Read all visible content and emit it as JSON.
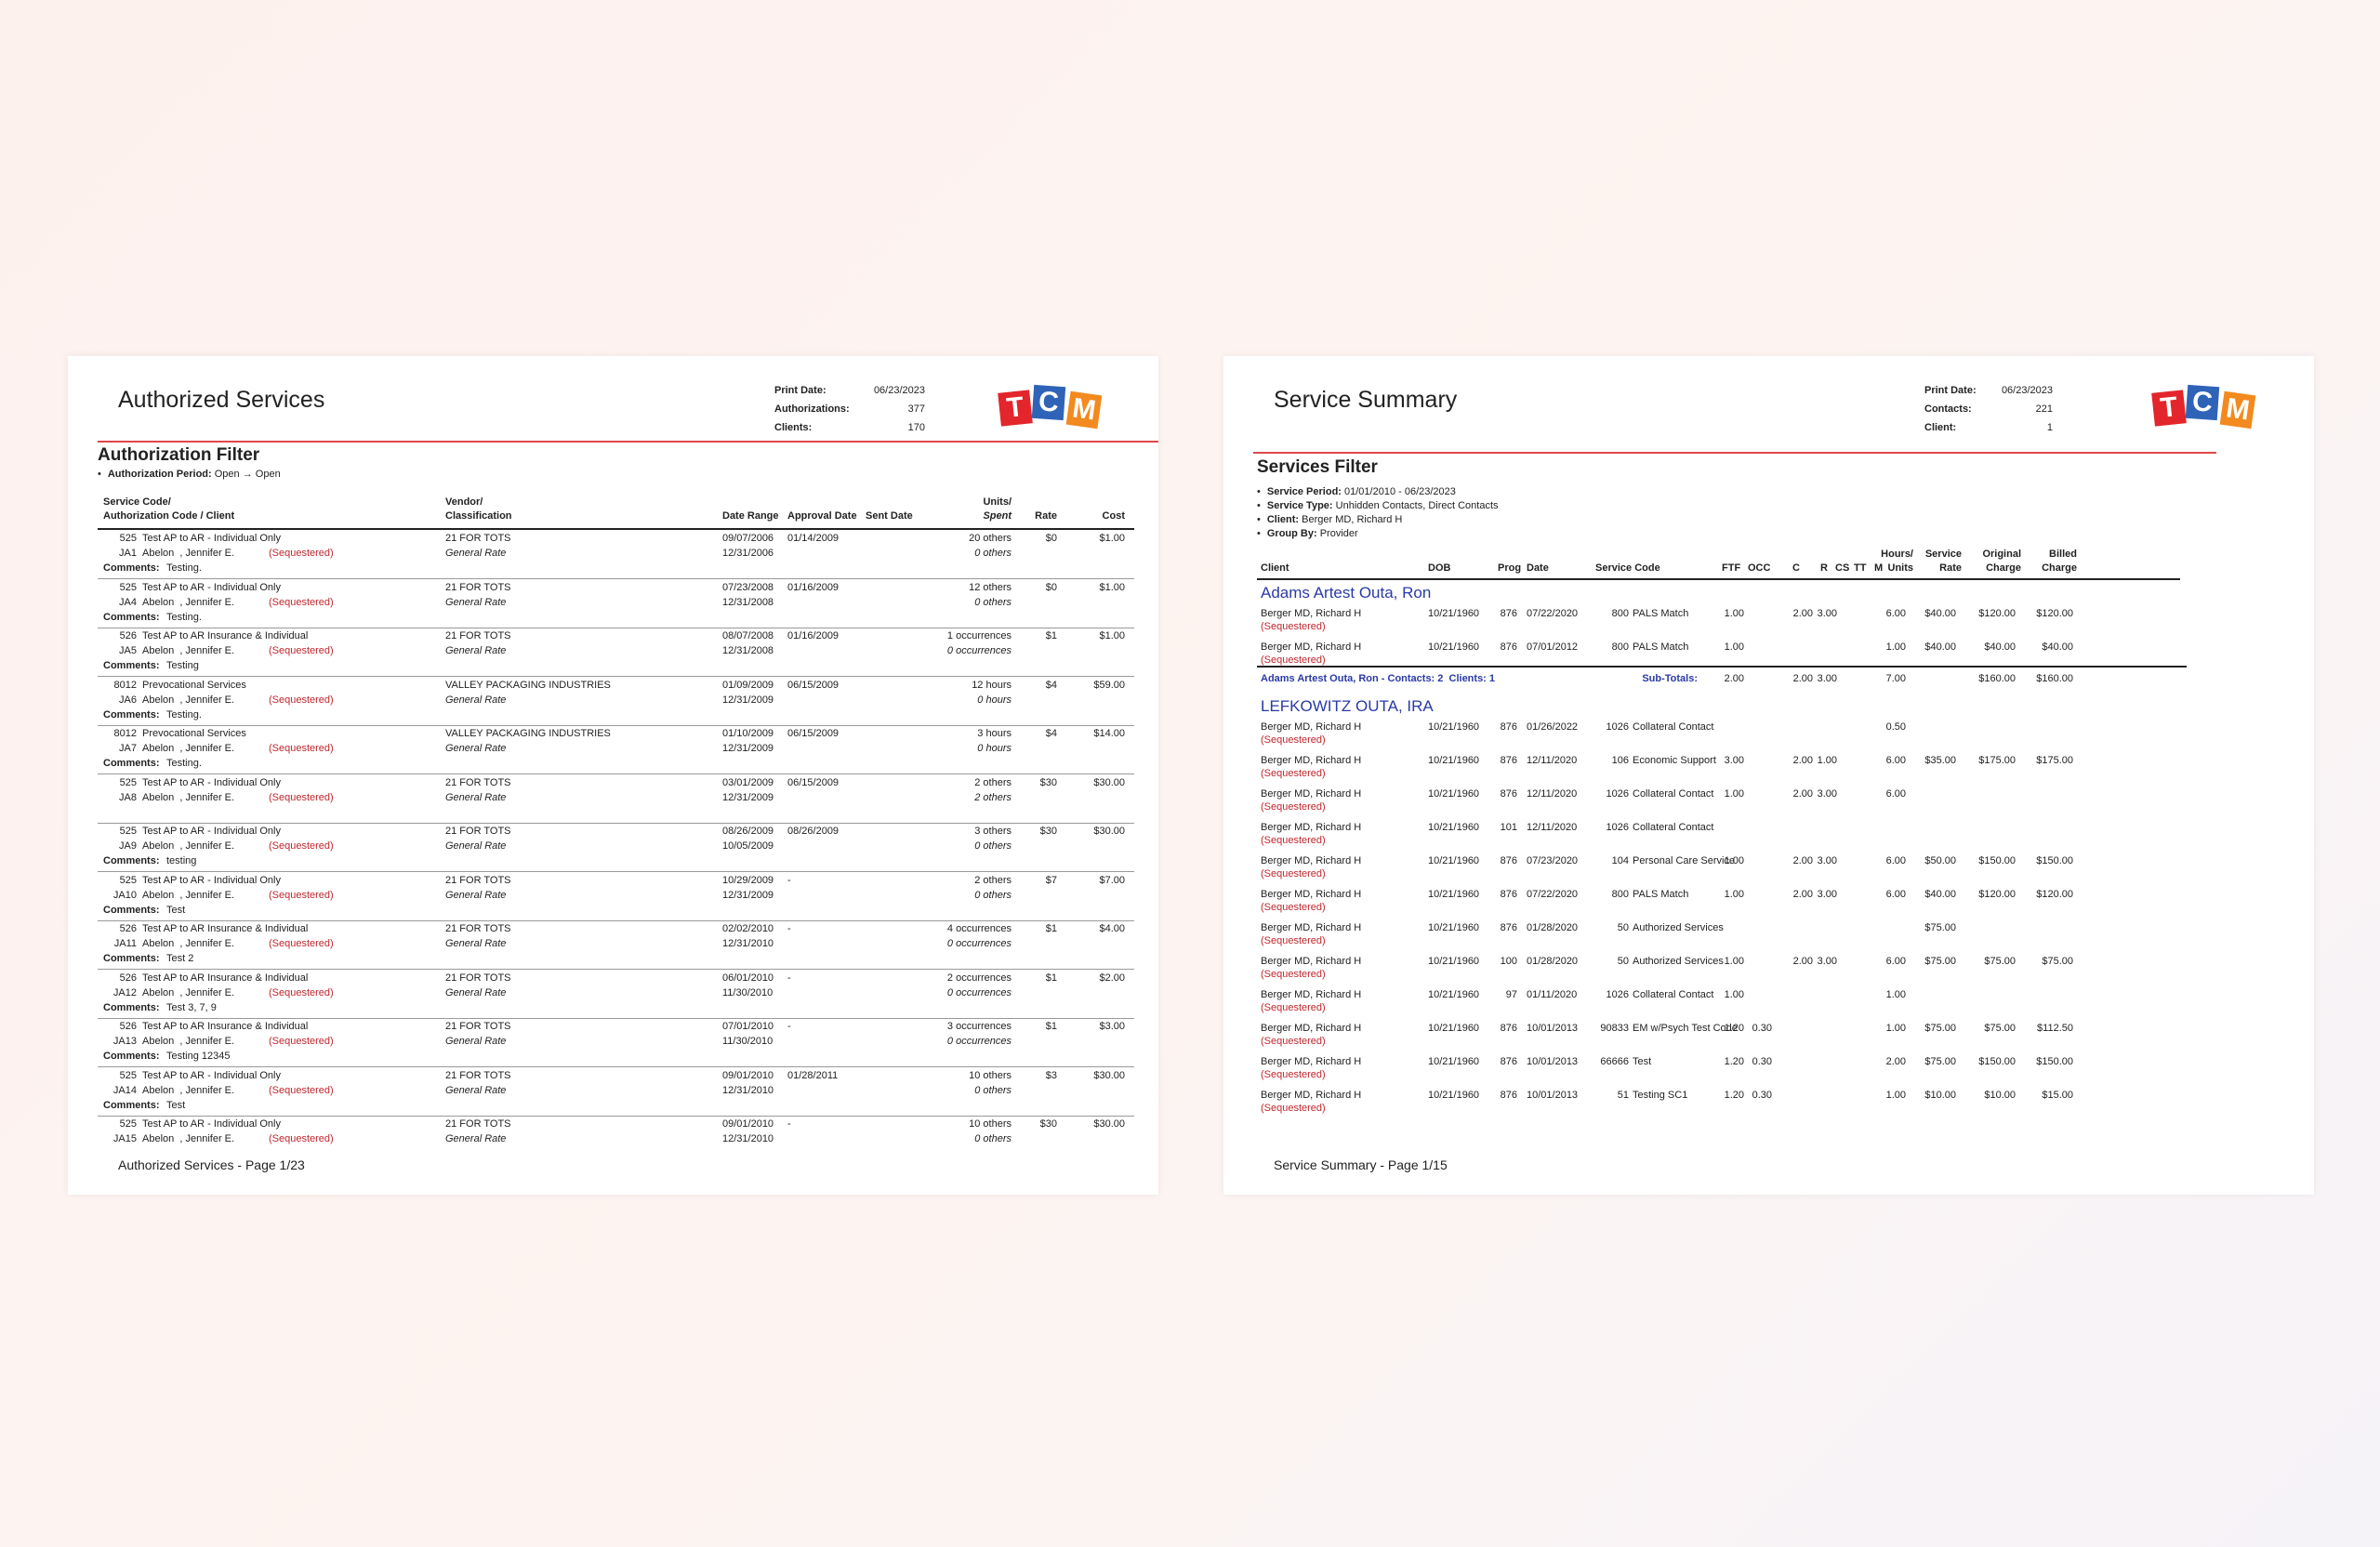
{
  "left_page": {
    "title": "Authorized Services",
    "meta": [
      {
        "label": "Print Date:",
        "value": "06/23/2023"
      },
      {
        "label": "Authorizations:",
        "value": "377"
      },
      {
        "label": "Clients:",
        "value": "170"
      }
    ],
    "logo_letters": [
      "T",
      "C",
      "M"
    ],
    "filter_title": "Authorization Filter",
    "filter_items": [
      {
        "label": "Authorization Period:",
        "value": "Open → Open"
      }
    ],
    "headers": {
      "service_line1": "Service Code/",
      "service_line2": "Authorization Code / Client",
      "vendor_line1": "Vendor/",
      "vendor_line2": "Classification",
      "date_range": "Date Range",
      "approval_date": "Approval Date",
      "sent_date": "Sent Date",
      "units_line1": "Units/",
      "units_line2": "Spent",
      "rate": "Rate",
      "cost": "Cost"
    },
    "comments_label": "Comments:",
    "entries": [
      {
        "service_code": "525",
        "service_name": "Test AP to AR - Individual Only",
        "auth_code": "JA1",
        "client": "Abelon  , Jennifer E.",
        "sequestered": "(Sequestered)",
        "vendor": "21 FOR TOTS",
        "classification": "General Rate",
        "date_start": "09/07/2006",
        "date_end": "12/31/2006",
        "approval": "01/14/2009",
        "sent": "",
        "units": "20 others",
        "spent": "0 others",
        "rate": "$0",
        "cost": "$1.00",
        "comment": "Testing."
      },
      {
        "service_code": "525",
        "service_name": "Test AP to AR - Individual Only",
        "auth_code": "JA4",
        "client": "Abelon  , Jennifer E.",
        "sequestered": "(Sequestered)",
        "vendor": "21 FOR TOTS",
        "classification": "General Rate",
        "date_start": "07/23/2008",
        "date_end": "12/31/2008",
        "approval": "01/16/2009",
        "sent": "",
        "units": "12 others",
        "spent": "0 others",
        "rate": "$0",
        "cost": "$1.00",
        "comment": "Testing."
      },
      {
        "service_code": "526",
        "service_name": "Test AP to AR Insurance & Individual",
        "auth_code": "JA5",
        "client": "Abelon  , Jennifer E.",
        "sequestered": "(Sequestered)",
        "vendor": "21 FOR TOTS",
        "classification": "General Rate",
        "date_start": "08/07/2008",
        "date_end": "12/31/2008",
        "approval": "01/16/2009",
        "sent": "",
        "units": "1 occurrences",
        "spent": "0 occurrences",
        "rate": "$1",
        "cost": "$1.00",
        "comment": "Testing"
      },
      {
        "service_code": "8012",
        "service_name": "Prevocational Services",
        "auth_code": "JA6",
        "client": "Abelon  , Jennifer E.",
        "sequestered": "(Sequestered)",
        "vendor": "VALLEY PACKAGING INDUSTRIES",
        "classification": "General Rate",
        "date_start": "01/09/2009",
        "date_end": "12/31/2009",
        "approval": "06/15/2009",
        "sent": "",
        "units": "12 hours",
        "spent": "0 hours",
        "rate": "$4",
        "cost": "$59.00",
        "comment": "Testing."
      },
      {
        "service_code": "8012",
        "service_name": "Prevocational Services",
        "auth_code": "JA7",
        "client": "Abelon  , Jennifer E.",
        "sequestered": "(Sequestered)",
        "vendor": "VALLEY PACKAGING INDUSTRIES",
        "classification": "General Rate",
        "date_start": "01/10/2009",
        "date_end": "12/31/2009",
        "approval": "06/15/2009",
        "sent": "",
        "units": "3 hours",
        "spent": "0 hours",
        "rate": "$4",
        "cost": "$14.00",
        "comment": "Testing."
      },
      {
        "service_code": "525",
        "service_name": "Test AP to AR - Individual Only",
        "auth_code": "JA8",
        "client": "Abelon  , Jennifer E.",
        "sequestered": "(Sequestered)",
        "vendor": "21 FOR TOTS",
        "classification": "General Rate",
        "date_start": "03/01/2009",
        "date_end": "12/31/2009",
        "approval": "06/15/2009",
        "sent": "",
        "units": "2 others",
        "spent": "2 others",
        "rate": "$30",
        "cost": "$30.00",
        "comment": ""
      },
      {
        "service_code": "525",
        "service_name": "Test AP to AR - Individual Only",
        "auth_code": "JA9",
        "client": "Abelon  , Jennifer E.",
        "sequestered": "(Sequestered)",
        "vendor": "21 FOR TOTS",
        "classification": "General Rate",
        "date_start": "08/26/2009",
        "date_end": "10/05/2009",
        "approval": "08/26/2009",
        "sent": "",
        "units": "3 others",
        "spent": "0 others",
        "rate": "$30",
        "cost": "$30.00",
        "comment": "testing"
      },
      {
        "service_code": "525",
        "service_name": "Test AP to AR - Individual Only",
        "auth_code": "JA10",
        "client": "Abelon  , Jennifer E.",
        "sequestered": "(Sequestered)",
        "vendor": "21 FOR TOTS",
        "classification": "General Rate",
        "date_start": "10/29/2009",
        "date_end": "12/31/2009",
        "approval": "-",
        "sent": "",
        "units": "2 others",
        "spent": "0 others",
        "rate": "$7",
        "cost": "$7.00",
        "comment": "Test"
      },
      {
        "service_code": "526",
        "service_name": "Test AP to AR Insurance & Individual",
        "auth_code": "JA11",
        "client": "Abelon  , Jennifer E.",
        "sequestered": "(Sequestered)",
        "vendor": "21 FOR TOTS",
        "classification": "General Rate",
        "date_start": "02/02/2010",
        "date_end": "12/31/2010",
        "approval": "-",
        "sent": "",
        "units": "4 occurrences",
        "spent": "0 occurrences",
        "rate": "$1",
        "cost": "$4.00",
        "comment": "Test 2"
      },
      {
        "service_code": "526",
        "service_name": "Test AP to AR Insurance & Individual",
        "auth_code": "JA12",
        "client": "Abelon  , Jennifer E.",
        "sequestered": "(Sequestered)",
        "vendor": "21 FOR TOTS",
        "classification": "General Rate",
        "date_start": "06/01/2010",
        "date_end": "11/30/2010",
        "approval": "-",
        "sent": "",
        "units": "2 occurrences",
        "spent": "0 occurrences",
        "rate": "$1",
        "cost": "$2.00",
        "comment": "Test 3, 7, 9"
      },
      {
        "service_code": "526",
        "service_name": "Test AP to AR Insurance & Individual",
        "auth_code": "JA13",
        "client": "Abelon  , Jennifer E.",
        "sequestered": "(Sequestered)",
        "vendor": "21 FOR TOTS",
        "classification": "General Rate",
        "date_start": "07/01/2010",
        "date_end": "11/30/2010",
        "approval": "-",
        "sent": "",
        "units": "3 occurrences",
        "spent": "0 occurrences",
        "rate": "$1",
        "cost": "$3.00",
        "comment": "Testing 12345"
      },
      {
        "service_code": "525",
        "service_name": "Test AP to AR - Individual Only",
        "auth_code": "JA14",
        "client": "Abelon  , Jennifer E.",
        "sequestered": "(Sequestered)",
        "vendor": "21 FOR TOTS",
        "classification": "General Rate",
        "date_start": "09/01/2010",
        "date_end": "12/31/2010",
        "approval": "01/28/2011",
        "sent": "",
        "units": "10 others",
        "spent": "0 others",
        "rate": "$3",
        "cost": "$30.00",
        "comment": "Test"
      },
      {
        "service_code": "525",
        "service_name": "Test AP to AR - Individual Only",
        "auth_code": "JA15",
        "client": "Abelon  , Jennifer E.",
        "sequestered": "(Sequestered)",
        "vendor": "21 FOR TOTS",
        "classification": "General Rate",
        "date_start": "09/01/2010",
        "date_end": "12/31/2010",
        "approval": "-",
        "sent": "",
        "units": "10 others",
        "spent": "0 others",
        "rate": "$30",
        "cost": "$30.00",
        "comment": ""
      }
    ],
    "footer": "Authorized Services - Page 1/23"
  },
  "right_page": {
    "title": "Service Summary",
    "meta": [
      {
        "label": "Print Date:",
        "value": "06/23/2023"
      },
      {
        "label": "Contacts:",
        "value": "221"
      },
      {
        "label": "Client:",
        "value": "1"
      }
    ],
    "logo_letters": [
      "T",
      "C",
      "M"
    ],
    "filter_title": "Services Filter",
    "filter_items": [
      {
        "label": "Service Period:",
        "value": "01/01/2010 - 06/23/2023"
      },
      {
        "label": "Service Type:",
        "value": "Unhidden Contacts, Direct Contacts"
      },
      {
        "label": "Client:",
        "value": "Berger MD, Richard H"
      },
      {
        "label": "Group By:",
        "value": "Provider"
      }
    ],
    "headers": {
      "client": "Client",
      "dob": "DOB",
      "prog": "Prog",
      "date": "Date",
      "service_code": "Service Code",
      "ftf": "FTF",
      "occ": "OCC",
      "c": "C",
      "r": "R",
      "cs": "CS",
      "tt": "TT",
      "m": "M",
      "hours_line1": "Hours/",
      "hours_line2": "Units",
      "rate_line1": "Service",
      "rate_line2": "Rate",
      "orig_line1": "Original",
      "orig_line2": "Charge",
      "billed_line1": "Billed",
      "billed_line2": "Charge"
    },
    "groups": [
      {
        "name": "Adams Artest Outa, Ron",
        "rows": [
          {
            "client": "Berger MD, Richard H",
            "sequestered": "(Sequestered)",
            "dob": "10/21/1960",
            "prog": "876",
            "date": "07/22/2020",
            "code": "800",
            "service": "PALS Match",
            "ftf": "1.00",
            "occ": "",
            "c": "2.00",
            "r": "3.00",
            "hours": "6.00",
            "rate": "$40.00",
            "orig": "$120.00",
            "billed": "$120.00"
          },
          {
            "client": "Berger MD, Richard H",
            "sequestered": "(Sequestered)",
            "dob": "10/21/1960",
            "prog": "876",
            "date": "07/01/2012",
            "code": "800",
            "service": "PALS Match",
            "ftf": "1.00",
            "occ": "",
            "c": "",
            "r": "",
            "hours": "1.00",
            "rate": "$40.00",
            "orig": "$40.00",
            "billed": "$40.00"
          }
        ],
        "subtotal": {
          "label": "Adams Artest Outa, Ron - Contacts: 2  Clients: 1",
          "sub_label": "Sub-Totals:",
          "ftf": "2.00",
          "c": "2.00",
          "r": "3.00",
          "hours": "7.00",
          "orig": "$160.00",
          "billed": "$160.00"
        }
      },
      {
        "name": "LEFKOWITZ OUTA, IRA",
        "rows": [
          {
            "client": "Berger MD, Richard H",
            "sequestered": "(Sequestered)",
            "dob": "10/21/1960",
            "prog": "876",
            "date": "01/26/2022",
            "code": "1026",
            "service": "Collateral Contact",
            "ftf": "",
            "occ": "",
            "c": "",
            "r": "",
            "hours": "0.50",
            "rate": "",
            "orig": "",
            "billed": ""
          },
          {
            "client": "Berger MD, Richard H",
            "sequestered": "(Sequestered)",
            "dob": "10/21/1960",
            "prog": "876",
            "date": "12/11/2020",
            "code": "106",
            "service": "Economic Support",
            "ftf": "3.00",
            "occ": "",
            "c": "2.00",
            "r": "1.00",
            "hours": "6.00",
            "rate": "$35.00",
            "orig": "$175.00",
            "billed": "$175.00"
          },
          {
            "client": "Berger MD, Richard H",
            "sequestered": "(Sequestered)",
            "dob": "10/21/1960",
            "prog": "876",
            "date": "12/11/2020",
            "code": "1026",
            "service": "Collateral Contact",
            "ftf": "1.00",
            "occ": "",
            "c": "2.00",
            "r": "3.00",
            "hours": "6.00",
            "rate": "",
            "orig": "",
            "billed": ""
          },
          {
            "client": "Berger MD, Richard H",
            "sequestered": "(Sequestered)",
            "dob": "10/21/1960",
            "prog": "101",
            "date": "12/11/2020",
            "code": "1026",
            "service": "Collateral Contact",
            "ftf": "",
            "occ": "",
            "c": "",
            "r": "",
            "hours": "",
            "rate": "",
            "orig": "",
            "billed": ""
          },
          {
            "client": "Berger MD, Richard H",
            "sequestered": "(Sequestered)",
            "dob": "10/21/1960",
            "prog": "876",
            "date": "07/23/2020",
            "code": "104",
            "service": "Personal Care Service",
            "ftf": "1.00",
            "occ": "",
            "c": "2.00",
            "r": "3.00",
            "hours": "6.00",
            "rate": "$50.00",
            "orig": "$150.00",
            "billed": "$150.00"
          },
          {
            "client": "Berger MD, Richard H",
            "sequestered": "(Sequestered)",
            "dob": "10/21/1960",
            "prog": "876",
            "date": "07/22/2020",
            "code": "800",
            "service": "PALS Match",
            "ftf": "1.00",
            "occ": "",
            "c": "2.00",
            "r": "3.00",
            "hours": "6.00",
            "rate": "$40.00",
            "orig": "$120.00",
            "billed": "$120.00"
          },
          {
            "client": "Berger MD, Richard H",
            "sequestered": "(Sequestered)",
            "dob": "10/21/1960",
            "prog": "876",
            "date": "01/28/2020",
            "code": "50",
            "service": "Authorized Services",
            "ftf": "",
            "occ": "",
            "c": "",
            "r": "",
            "hours": "",
            "rate": "$75.00",
            "orig": "",
            "billed": ""
          },
          {
            "client": "Berger MD, Richard H",
            "sequestered": "(Sequestered)",
            "dob": "10/21/1960",
            "prog": "100",
            "date": "01/28/2020",
            "code": "50",
            "service": "Authorized Services",
            "ftf": "1.00",
            "occ": "",
            "c": "2.00",
            "r": "3.00",
            "hours": "6.00",
            "rate": "$75.00",
            "orig": "$75.00",
            "billed": "$75.00"
          },
          {
            "client": "Berger MD, Richard H",
            "sequestered": "(Sequestered)",
            "dob": "10/21/1960",
            "prog": "97",
            "date": "01/11/2020",
            "code": "1026",
            "service": "Collateral Contact",
            "ftf": "1.00",
            "occ": "",
            "c": "",
            "r": "",
            "hours": "1.00",
            "rate": "",
            "orig": "",
            "billed": ""
          },
          {
            "client": "Berger MD, Richard H",
            "sequestered": "(Sequestered)",
            "dob": "10/21/1960",
            "prog": "876",
            "date": "10/01/2013",
            "code": "90833",
            "service": "EM w/Psych Test Code",
            "ftf": "1.20",
            "occ": "0.30",
            "c": "",
            "r": "",
            "hours": "1.00",
            "rate": "$75.00",
            "orig": "$75.00",
            "billed": "$112.50"
          },
          {
            "client": "Berger MD, Richard H",
            "sequestered": "(Sequestered)",
            "dob": "10/21/1960",
            "prog": "876",
            "date": "10/01/2013",
            "code": "66666",
            "service": "Test",
            "ftf": "1.20",
            "occ": "0.30",
            "c": "",
            "r": "",
            "hours": "2.00",
            "rate": "$75.00",
            "orig": "$150.00",
            "billed": "$150.00"
          },
          {
            "client": "Berger MD, Richard H",
            "sequestered": "(Sequestered)",
            "dob": "10/21/1960",
            "prog": "876",
            "date": "10/01/2013",
            "code": "51",
            "service": "Testing SC1",
            "ftf": "1.20",
            "occ": "0.30",
            "c": "",
            "r": "",
            "hours": "1.00",
            "rate": "$10.00",
            "orig": "$10.00",
            "billed": "$15.00"
          }
        ]
      }
    ],
    "footer": "Service Summary - Page 1/15"
  }
}
